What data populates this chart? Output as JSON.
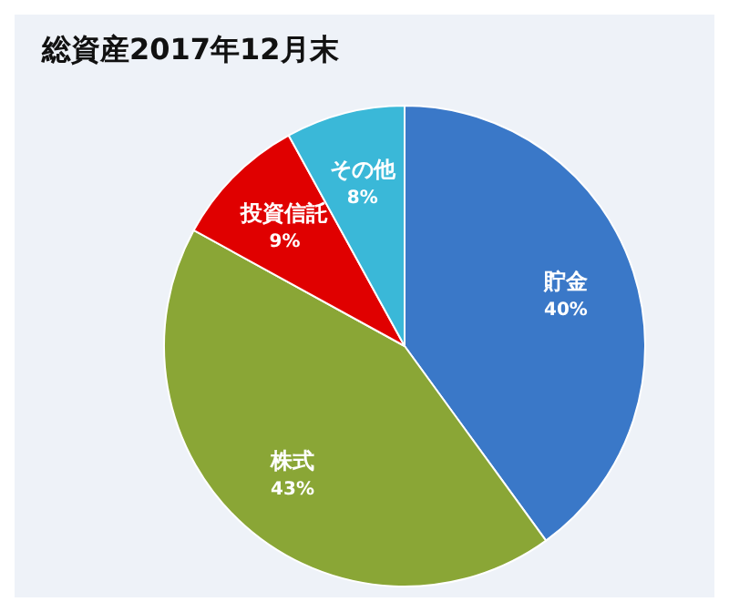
{
  "chart_data": {
    "type": "pie",
    "title": "総資産2017年12月末",
    "categories": [
      "貯金",
      "株式",
      "投資信託",
      "その他"
    ],
    "values": [
      40,
      43,
      9,
      8
    ],
    "value_labels": [
      "40%",
      "43%",
      "9%",
      "8%"
    ],
    "colors": [
      "#3a78c8",
      "#8aa636",
      "#e00000",
      "#3ab8d8"
    ],
    "legend": false
  }
}
